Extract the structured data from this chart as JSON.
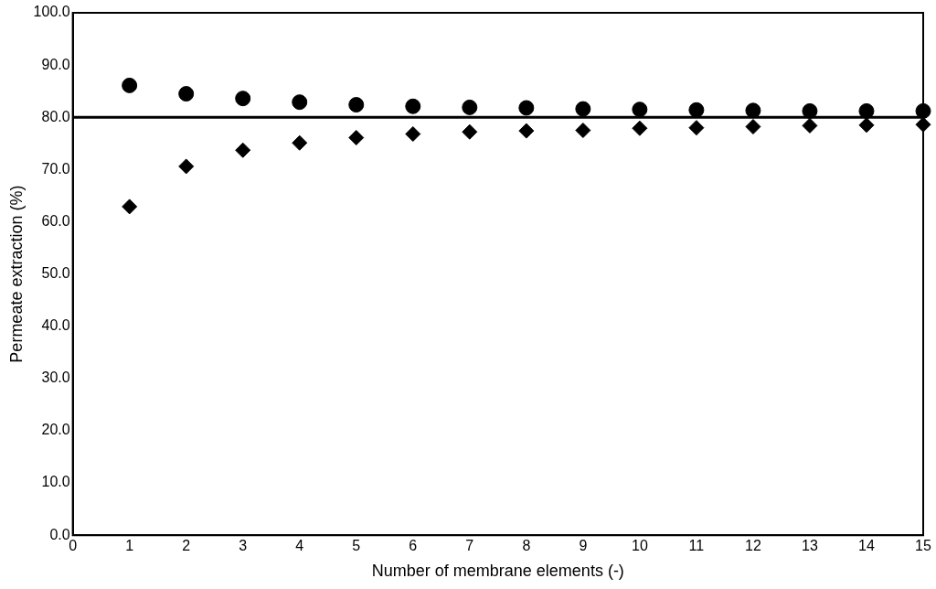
{
  "chart_data": {
    "type": "scatter",
    "xlabel": "Number of membrane elements (-)",
    "ylabel": "Permeate extraction (%)",
    "x": [
      1,
      2,
      3,
      4,
      5,
      6,
      7,
      8,
      9,
      10,
      11,
      12,
      13,
      14,
      15
    ],
    "series": [
      {
        "color": "#000000",
        "marker": "circle",
        "values": [
          86.1,
          84.5,
          83.6,
          82.9,
          82.4,
          82.1,
          81.9,
          81.8,
          81.6,
          81.5,
          81.4,
          81.3,
          81.2,
          81.2,
          81.2
        ]
      },
      {
        "color": "#000000",
        "marker": "diamond",
        "values": [
          62.9,
          70.6,
          73.7,
          75.1,
          76.1,
          76.8,
          77.2,
          77.4,
          77.5,
          77.9,
          78.0,
          78.2,
          78.4,
          78.5,
          78.6
        ]
      }
    ],
    "xlim": [
      0,
      15
    ],
    "xticks": [
      0,
      1,
      2,
      3,
      4,
      5,
      6,
      7,
      8,
      9,
      10,
      11,
      12,
      13,
      14,
      15
    ],
    "ylim": [
      0,
      100
    ],
    "yticks": [
      {
        "value": 0,
        "label": "0.0"
      },
      {
        "value": 10,
        "label": "10.0"
      },
      {
        "value": 20,
        "label": "20.0"
      },
      {
        "value": 30,
        "label": "30.0"
      },
      {
        "value": 40,
        "label": "40.0"
      },
      {
        "value": 50,
        "label": "50.0"
      },
      {
        "value": 60,
        "label": "60.0"
      },
      {
        "value": 70,
        "label": "70.0"
      },
      {
        "value": 80,
        "label": "80.0"
      },
      {
        "value": 90,
        "label": "90.0"
      },
      {
        "value": 100,
        "label": "100.0"
      }
    ],
    "ref_lines": [
      {
        "axis": "y",
        "value": 80,
        "color": "#000000"
      }
    ],
    "grid": false,
    "legend": false
  }
}
